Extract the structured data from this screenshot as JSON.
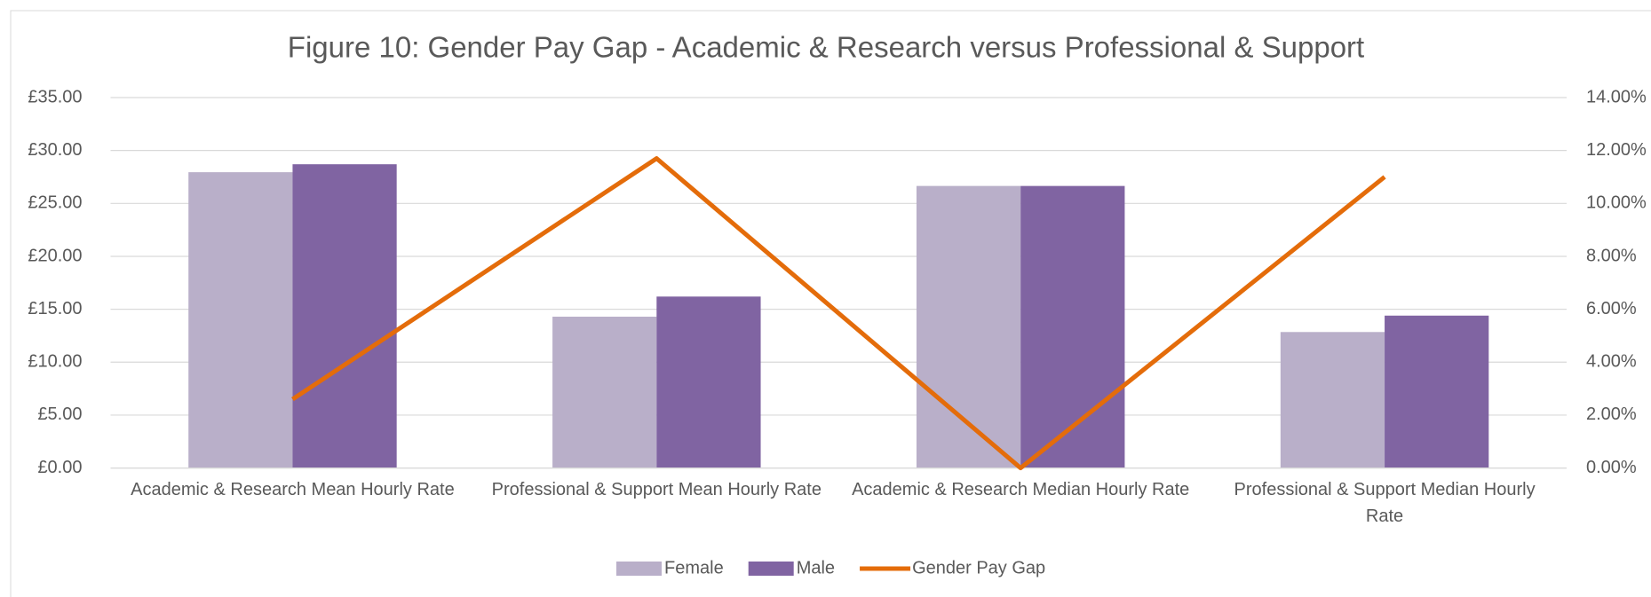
{
  "chart_data": {
    "type": "bar",
    "title": "Figure 10: Gender Pay Gap - Academic & Research versus Professional & Support",
    "categories": [
      "Academic & Research Mean Hourly Rate",
      "Professional & Support Mean Hourly Rate",
      "Academic & Research Median Hourly Rate",
      "Professional & Support Median Hourly Rate"
    ],
    "series": [
      {
        "name": "Female",
        "type": "bar",
        "color": "#b9afc9",
        "values": [
          27.95,
          14.3,
          26.65,
          12.85
        ]
      },
      {
        "name": "Male",
        "type": "bar",
        "color": "#8064a2",
        "values": [
          28.7,
          16.2,
          26.65,
          14.4
        ]
      },
      {
        "name": "Gender Pay Gap",
        "type": "line",
        "axis": "y2",
        "color": "#e46c0a",
        "values": [
          2.6,
          11.7,
          0,
          11.0
        ]
      }
    ],
    "ylim": [
      0,
      35
    ],
    "yticks": [
      {
        "value": 0,
        "label": "£0.00"
      },
      {
        "value": 5,
        "label": "£5.00"
      },
      {
        "value": 10,
        "label": "£10.00"
      },
      {
        "value": 15,
        "label": "£15.00"
      },
      {
        "value": 20,
        "label": "£20.00"
      },
      {
        "value": 25,
        "label": "£25.00"
      },
      {
        "value": 30,
        "label": "£30.00"
      },
      {
        "value": 35,
        "label": "£35.00"
      }
    ],
    "y2lim": [
      0,
      14
    ],
    "y2ticks": [
      {
        "value": 0,
        "label": "0.00%"
      },
      {
        "value": 2,
        "label": "2.00%"
      },
      {
        "value": 4,
        "label": "4.00%"
      },
      {
        "value": 6,
        "label": "6.00%"
      },
      {
        "value": 8,
        "label": "8.00%"
      },
      {
        "value": 10,
        "label": "10.00%"
      },
      {
        "value": 12,
        "label": "12.00%"
      },
      {
        "value": 14,
        "label": "14.00%"
      }
    ],
    "grid": true,
    "legend": "bottom"
  }
}
